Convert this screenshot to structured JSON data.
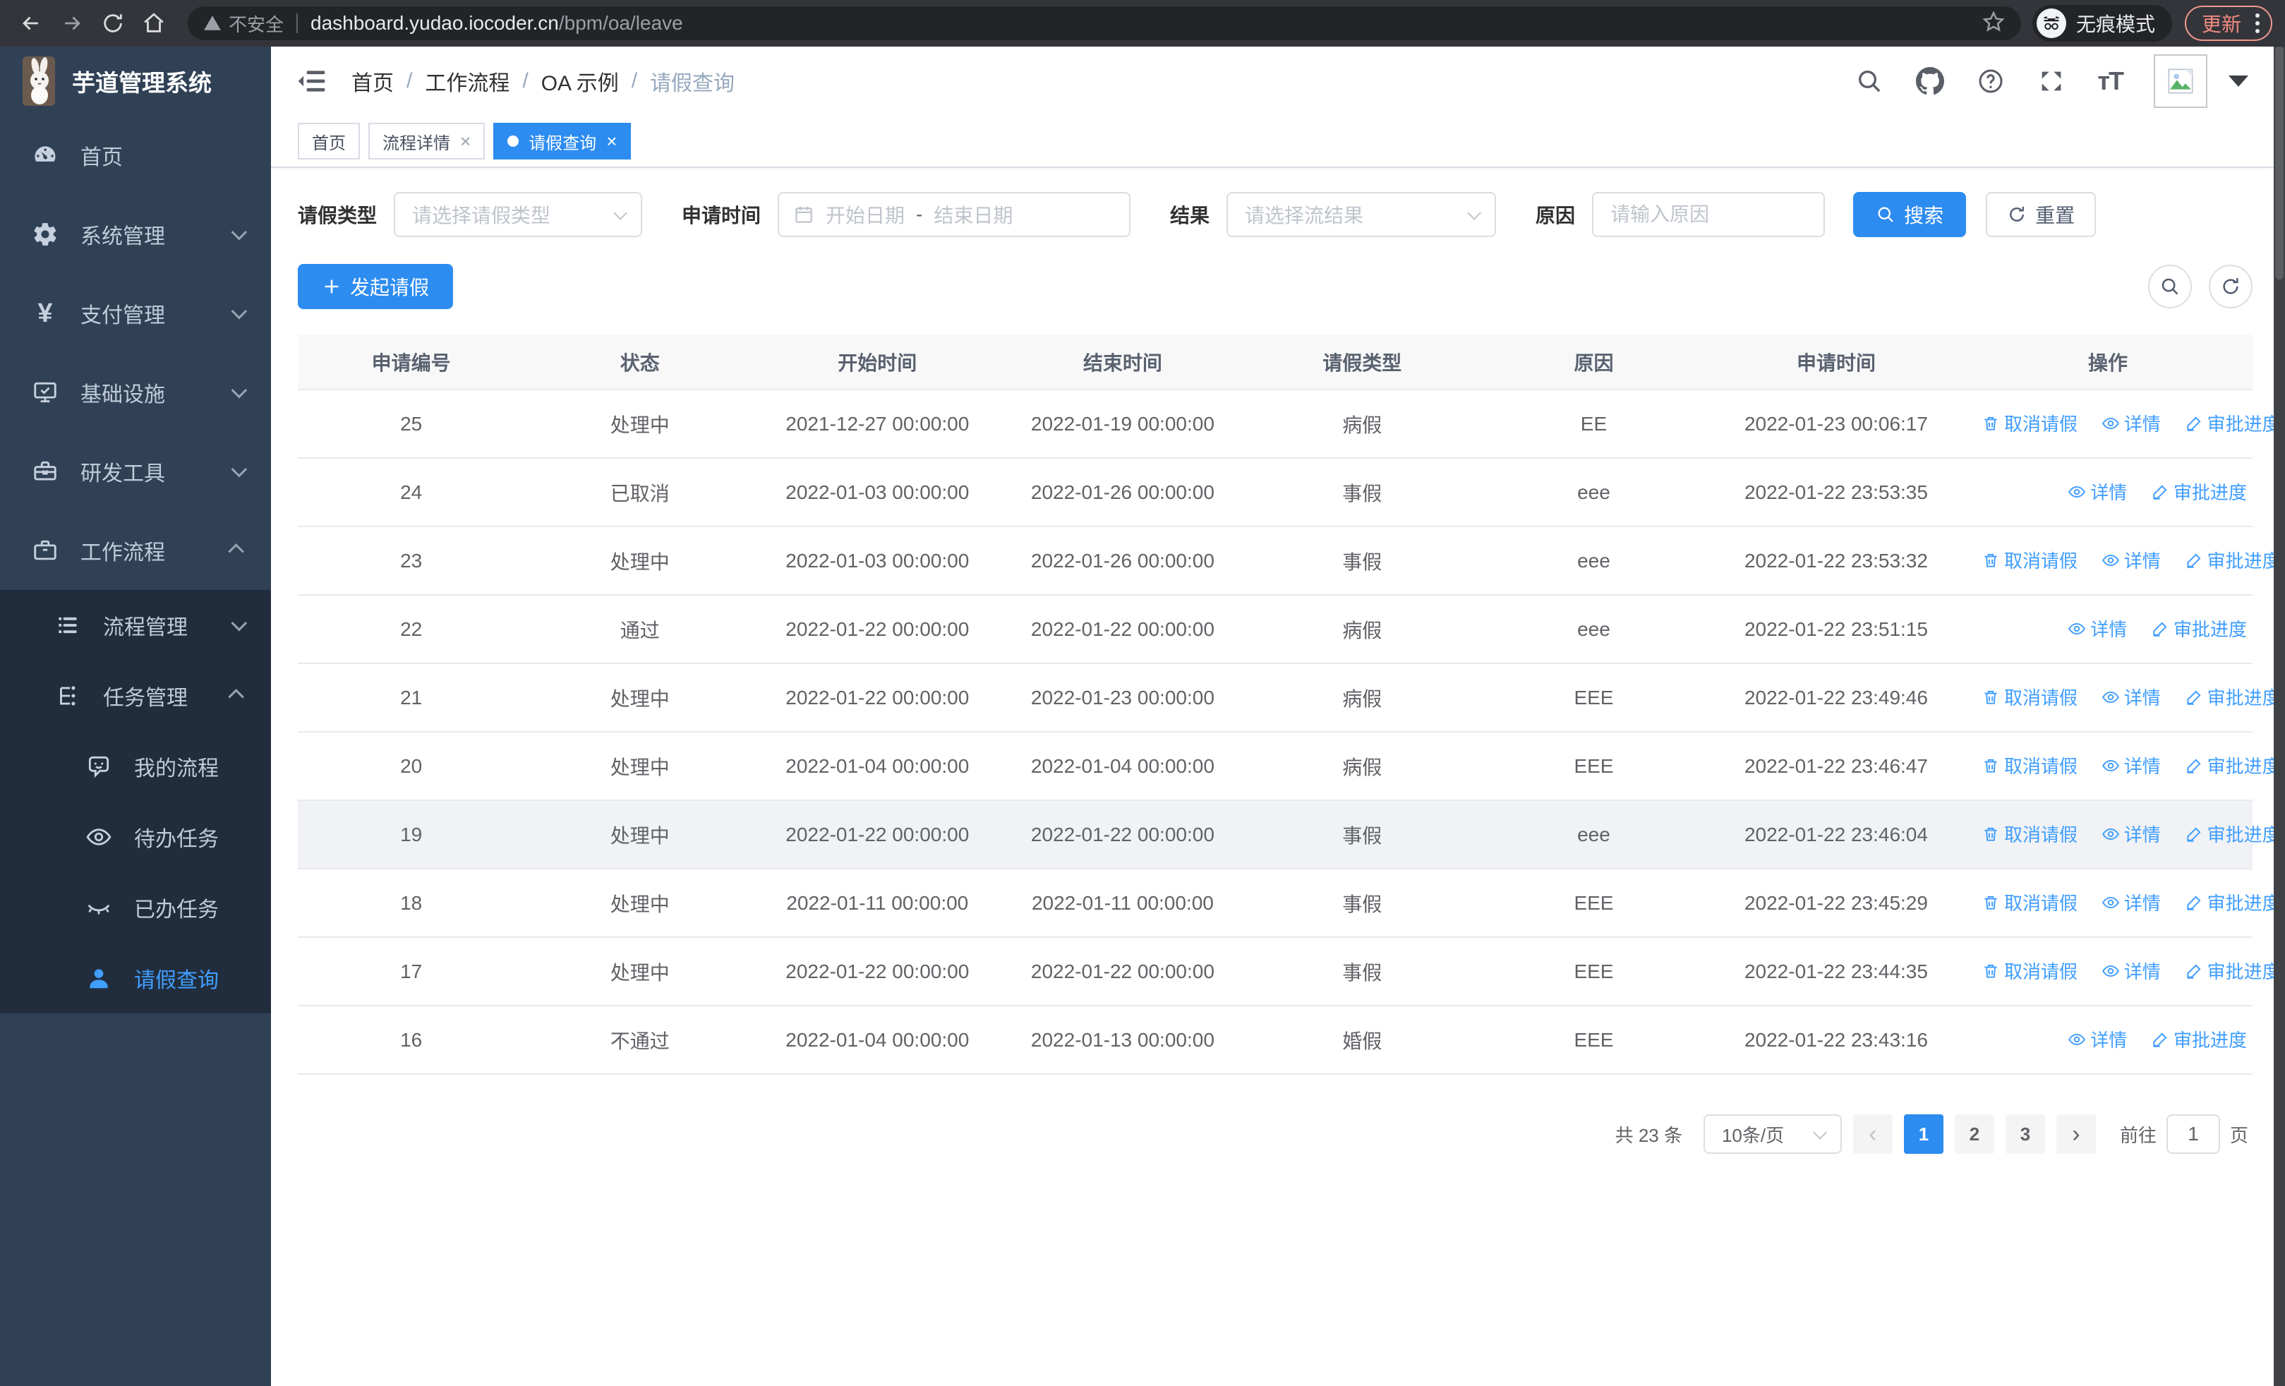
{
  "colors": {
    "accent": "#2d8cf0",
    "link": "#409eff",
    "sidebar_bg": "#304156",
    "submenu_bg": "#212d3c",
    "active_menu": "#409eff"
  },
  "browser": {
    "insecure_label": "不安全",
    "url_domain": "dashboard.yudao.iocoder.cn",
    "url_path": "/bpm/oa/leave",
    "incognito_label": "无痕模式",
    "update_label": "更新"
  },
  "app": {
    "title": "芋道管理系统"
  },
  "sidebar": {
    "items": [
      {
        "name": "home",
        "icon": "dashboard-icon",
        "label": "首页",
        "level": 1,
        "arrow": "",
        "sub": false,
        "active": false
      },
      {
        "name": "system-management",
        "icon": "gear-icon",
        "label": "系统管理",
        "level": 1,
        "arrow": "down",
        "sub": false,
        "active": false
      },
      {
        "name": "payment-management",
        "icon": "yen-icon",
        "label": "支付管理",
        "level": 1,
        "arrow": "down",
        "sub": false,
        "active": false
      },
      {
        "name": "infrastructure",
        "icon": "monitor-icon",
        "label": "基础设施",
        "level": 1,
        "arrow": "down",
        "sub": false,
        "active": false
      },
      {
        "name": "dev-tools",
        "icon": "toolbox-icon",
        "label": "研发工具",
        "level": 1,
        "arrow": "down",
        "sub": false,
        "active": false
      },
      {
        "name": "workflow",
        "icon": "briefcase-icon",
        "label": "工作流程",
        "level": 1,
        "arrow": "up",
        "sub": false,
        "active": false
      },
      {
        "name": "process-management",
        "icon": "list-icon",
        "label": "流程管理",
        "level": 2,
        "arrow": "down",
        "sub": true,
        "active": false
      },
      {
        "name": "task-management",
        "icon": "tree-icon",
        "label": "任务管理",
        "level": 2,
        "arrow": "up",
        "sub": true,
        "active": false
      },
      {
        "name": "my-processes",
        "icon": "chat-face-icon",
        "label": "我的流程",
        "level": 3,
        "arrow": "",
        "sub": true,
        "active": false
      },
      {
        "name": "todo-tasks",
        "icon": "eye-icon",
        "label": "待办任务",
        "level": 3,
        "arrow": "",
        "sub": true,
        "active": false
      },
      {
        "name": "done-tasks",
        "icon": "eye-closed-icon",
        "label": "已办任务",
        "level": 3,
        "arrow": "",
        "sub": true,
        "active": false
      },
      {
        "name": "leave-query",
        "icon": "user-icon",
        "label": "请假查询",
        "level": 3,
        "arrow": "",
        "sub": true,
        "active": true
      }
    ]
  },
  "breadcrumb": {
    "separator": "/",
    "items": [
      "首页",
      "工作流程",
      "OA 示例",
      "请假查询"
    ]
  },
  "tabs": {
    "items": [
      {
        "label": "首页",
        "active": false,
        "closable": false
      },
      {
        "label": "流程详情",
        "active": false,
        "closable": true
      },
      {
        "label": "请假查询",
        "active": true,
        "closable": true
      }
    ]
  },
  "filters": {
    "leave_type_label": "请假类型",
    "leave_type_placeholder": "请选择请假类型",
    "apply_time_label": "申请时间",
    "date_start_placeholder": "开始日期",
    "date_separator": "-",
    "date_end_placeholder": "结束日期",
    "result_label": "结果",
    "result_placeholder": "请选择流结果",
    "reason_label": "原因",
    "reason_placeholder": "请输入原因",
    "search_label": "搜索",
    "reset_label": "重置"
  },
  "toolbar": {
    "create_label": "发起请假"
  },
  "table": {
    "columns": [
      "申请编号",
      "状态",
      "开始时间",
      "结束时间",
      "请假类型",
      "原因",
      "申请时间",
      "操作"
    ],
    "action_labels": {
      "cancel": "取消请假",
      "detail": "详情",
      "progress": "审批进度"
    },
    "rows": [
      {
        "id": "25",
        "status": "处理中",
        "start": "2021-12-27 00:00:00",
        "end": "2022-01-19 00:00:00",
        "type": "病假",
        "reason": "EE",
        "apply_time": "2022-01-23 00:06:17",
        "can_cancel": true,
        "highlight": false
      },
      {
        "id": "24",
        "status": "已取消",
        "start": "2022-01-03 00:00:00",
        "end": "2022-01-26 00:00:00",
        "type": "事假",
        "reason": "eee",
        "apply_time": "2022-01-22 23:53:35",
        "can_cancel": false,
        "highlight": false
      },
      {
        "id": "23",
        "status": "处理中",
        "start": "2022-01-03 00:00:00",
        "end": "2022-01-26 00:00:00",
        "type": "事假",
        "reason": "eee",
        "apply_time": "2022-01-22 23:53:32",
        "can_cancel": true,
        "highlight": false
      },
      {
        "id": "22",
        "status": "通过",
        "start": "2022-01-22 00:00:00",
        "end": "2022-01-22 00:00:00",
        "type": "病假",
        "reason": "eee",
        "apply_time": "2022-01-22 23:51:15",
        "can_cancel": false,
        "highlight": false
      },
      {
        "id": "21",
        "status": "处理中",
        "start": "2022-01-22 00:00:00",
        "end": "2022-01-23 00:00:00",
        "type": "病假",
        "reason": "EEE",
        "apply_time": "2022-01-22 23:49:46",
        "can_cancel": true,
        "highlight": false
      },
      {
        "id": "20",
        "status": "处理中",
        "start": "2022-01-04 00:00:00",
        "end": "2022-01-04 00:00:00",
        "type": "病假",
        "reason": "EEE",
        "apply_time": "2022-01-22 23:46:47",
        "can_cancel": true,
        "highlight": false
      },
      {
        "id": "19",
        "status": "处理中",
        "start": "2022-01-22 00:00:00",
        "end": "2022-01-22 00:00:00",
        "type": "事假",
        "reason": "eee",
        "apply_time": "2022-01-22 23:46:04",
        "can_cancel": true,
        "highlight": true
      },
      {
        "id": "18",
        "status": "处理中",
        "start": "2022-01-11 00:00:00",
        "end": "2022-01-11 00:00:00",
        "type": "事假",
        "reason": "EEE",
        "apply_time": "2022-01-22 23:45:29",
        "can_cancel": true,
        "highlight": false
      },
      {
        "id": "17",
        "status": "处理中",
        "start": "2022-01-22 00:00:00",
        "end": "2022-01-22 00:00:00",
        "type": "事假",
        "reason": "EEE",
        "apply_time": "2022-01-22 23:44:35",
        "can_cancel": true,
        "highlight": false
      },
      {
        "id": "16",
        "status": "不通过",
        "start": "2022-01-04 00:00:00",
        "end": "2022-01-13 00:00:00",
        "type": "婚假",
        "reason": "EEE",
        "apply_time": "2022-01-22 23:43:16",
        "can_cancel": false,
        "highlight": false
      }
    ]
  },
  "pagination": {
    "total_text": "共 23 条",
    "page_size": "10条/页",
    "pages": [
      "1",
      "2",
      "3"
    ],
    "current": "1",
    "goto_label": "前往",
    "goto_value": "1",
    "goto_unit": "页"
  }
}
